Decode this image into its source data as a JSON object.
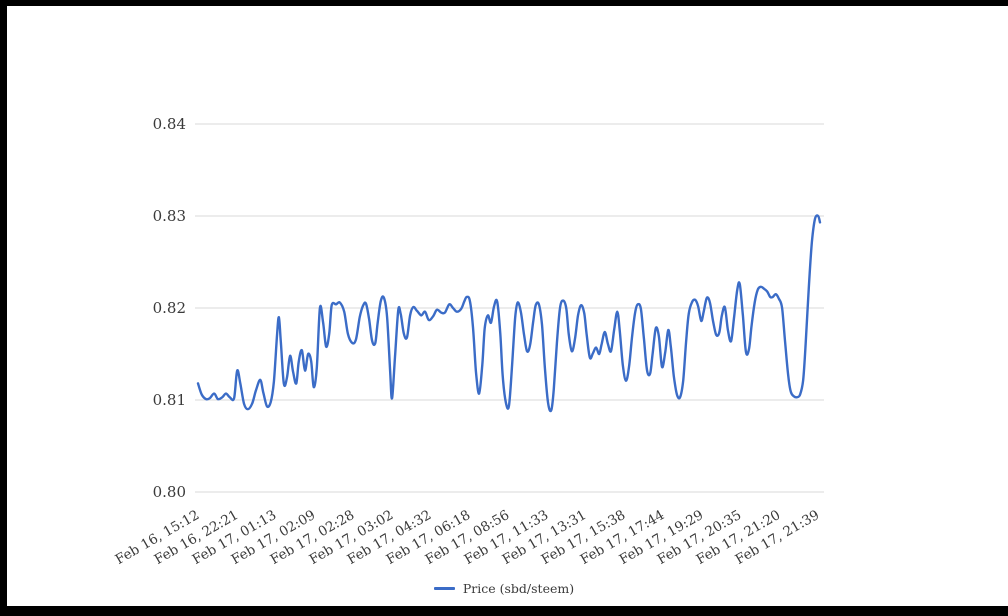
{
  "colors": {
    "frame": "#000000",
    "background": "#ffffff",
    "line": "#3b6cc7",
    "grid": "#d9d9d9",
    "text": "#3a3a3a"
  },
  "legend": {
    "label": "Price (sbd/steem)"
  },
  "chart_data": {
    "type": "line",
    "title": "",
    "xlabel": "",
    "ylabel": "",
    "grid": "horizontal",
    "legend_position": "bottom",
    "ylim": [
      0.8,
      0.84
    ],
    "y_ticks": [
      0.8,
      0.81,
      0.82,
      0.83,
      0.84
    ],
    "y_tick_labels": [
      "0.80",
      "0.81",
      "0.82",
      "0.83",
      "0.84"
    ],
    "x_tick_labels": [
      "Feb 16, 15:12",
      "Feb 16, 22:21",
      "Feb 17, 01:13",
      "Feb 17, 02:09",
      "Feb 17, 02:28",
      "Feb 17, 03:02",
      "Feb 17, 04:32",
      "Feb 17, 06:18",
      "Feb 17, 08:56",
      "Feb 17, 11:33",
      "Feb 17, 13:31",
      "Feb 17, 15:38",
      "Feb 17, 17:44",
      "Feb 17, 19:29",
      "Feb 17, 20:35",
      "Feb 17, 21:20",
      "Feb 17, 21:39"
    ],
    "series": [
      {
        "name": "Price (sbd/steem)",
        "color": "#3b6cc7",
        "points": [
          [
            0.0,
            0.8118
          ],
          [
            0.006,
            0.8106
          ],
          [
            0.013,
            0.8101
          ],
          [
            0.019,
            0.8102
          ],
          [
            0.026,
            0.8107
          ],
          [
            0.032,
            0.8101
          ],
          [
            0.039,
            0.8103
          ],
          [
            0.045,
            0.8107
          ],
          [
            0.051,
            0.8103
          ],
          [
            0.058,
            0.8102
          ],
          [
            0.063,
            0.8132
          ],
          [
            0.068,
            0.8118
          ],
          [
            0.074,
            0.8096
          ],
          [
            0.08,
            0.809
          ],
          [
            0.087,
            0.8096
          ],
          [
            0.093,
            0.811
          ],
          [
            0.1,
            0.8122
          ],
          [
            0.105,
            0.8108
          ],
          [
            0.111,
            0.8093
          ],
          [
            0.117,
            0.8098
          ],
          [
            0.122,
            0.812
          ],
          [
            0.127,
            0.817
          ],
          [
            0.13,
            0.819
          ],
          [
            0.133,
            0.8165
          ],
          [
            0.138,
            0.8118
          ],
          [
            0.143,
            0.8124
          ],
          [
            0.148,
            0.8148
          ],
          [
            0.153,
            0.813
          ],
          [
            0.158,
            0.8118
          ],
          [
            0.162,
            0.8142
          ],
          [
            0.167,
            0.8154
          ],
          [
            0.172,
            0.8132
          ],
          [
            0.177,
            0.815
          ],
          [
            0.182,
            0.8142
          ],
          [
            0.186,
            0.8114
          ],
          [
            0.191,
            0.8135
          ],
          [
            0.196,
            0.82
          ],
          [
            0.201,
            0.8185
          ],
          [
            0.206,
            0.8158
          ],
          [
            0.211,
            0.8172
          ],
          [
            0.215,
            0.8203
          ],
          [
            0.222,
            0.8204
          ],
          [
            0.228,
            0.8206
          ],
          [
            0.235,
            0.8196
          ],
          [
            0.241,
            0.8172
          ],
          [
            0.248,
            0.8162
          ],
          [
            0.254,
            0.8166
          ],
          [
            0.26,
            0.819
          ],
          [
            0.265,
            0.8202
          ],
          [
            0.27,
            0.8205
          ],
          [
            0.275,
            0.8188
          ],
          [
            0.28,
            0.8164
          ],
          [
            0.285,
            0.8162
          ],
          [
            0.289,
            0.8185
          ],
          [
            0.294,
            0.8208
          ],
          [
            0.299,
            0.8211
          ],
          [
            0.304,
            0.819
          ],
          [
            0.309,
            0.813
          ],
          [
            0.312,
            0.8102
          ],
          [
            0.317,
            0.815
          ],
          [
            0.322,
            0.8198
          ],
          [
            0.326,
            0.8193
          ],
          [
            0.331,
            0.8172
          ],
          [
            0.336,
            0.8168
          ],
          [
            0.341,
            0.8192
          ],
          [
            0.346,
            0.8201
          ],
          [
            0.352,
            0.8197
          ],
          [
            0.359,
            0.8192
          ],
          [
            0.365,
            0.8196
          ],
          [
            0.371,
            0.8187
          ],
          [
            0.378,
            0.8191
          ],
          [
            0.384,
            0.8198
          ],
          [
            0.391,
            0.8195
          ],
          [
            0.397,
            0.8195
          ],
          [
            0.404,
            0.8204
          ],
          [
            0.41,
            0.82
          ],
          [
            0.416,
            0.8196
          ],
          [
            0.423,
            0.8199
          ],
          [
            0.428,
            0.8207
          ],
          [
            0.432,
            0.8212
          ],
          [
            0.437,
            0.8208
          ],
          [
            0.442,
            0.818
          ],
          [
            0.447,
            0.813
          ],
          [
            0.452,
            0.8107
          ],
          [
            0.457,
            0.8138
          ],
          [
            0.461,
            0.8178
          ],
          [
            0.466,
            0.8192
          ],
          [
            0.471,
            0.8184
          ],
          [
            0.476,
            0.8202
          ],
          [
            0.481,
            0.8207
          ],
          [
            0.486,
            0.8172
          ],
          [
            0.49,
            0.8125
          ],
          [
            0.495,
            0.8097
          ],
          [
            0.5,
            0.8094
          ],
          [
            0.505,
            0.8138
          ],
          [
            0.51,
            0.819
          ],
          [
            0.514,
            0.8206
          ],
          [
            0.519,
            0.8196
          ],
          [
            0.524,
            0.8172
          ],
          [
            0.529,
            0.8153
          ],
          [
            0.534,
            0.816
          ],
          [
            0.539,
            0.8186
          ],
          [
            0.543,
            0.8203
          ],
          [
            0.548,
            0.8204
          ],
          [
            0.553,
            0.8182
          ],
          [
            0.558,
            0.8132
          ],
          [
            0.563,
            0.8096
          ],
          [
            0.568,
            0.8089
          ],
          [
            0.572,
            0.8112
          ],
          [
            0.577,
            0.8162
          ],
          [
            0.582,
            0.82
          ],
          [
            0.587,
            0.8208
          ],
          [
            0.592,
            0.82
          ],
          [
            0.596,
            0.8172
          ],
          [
            0.601,
            0.8153
          ],
          [
            0.606,
            0.8166
          ],
          [
            0.611,
            0.8192
          ],
          [
            0.616,
            0.8203
          ],
          [
            0.621,
            0.8194
          ],
          [
            0.625,
            0.817
          ],
          [
            0.63,
            0.8146
          ],
          [
            0.635,
            0.8151
          ],
          [
            0.64,
            0.8157
          ],
          [
            0.645,
            0.815
          ],
          [
            0.649,
            0.8161
          ],
          [
            0.654,
            0.8174
          ],
          [
            0.659,
            0.8161
          ],
          [
            0.664,
            0.8153
          ],
          [
            0.669,
            0.8176
          ],
          [
            0.674,
            0.8196
          ],
          [
            0.678,
            0.8176
          ],
          [
            0.683,
            0.8138
          ],
          [
            0.688,
            0.8121
          ],
          [
            0.693,
            0.8136
          ],
          [
            0.698,
            0.817
          ],
          [
            0.703,
            0.8196
          ],
          [
            0.707,
            0.8204
          ],
          [
            0.712,
            0.8199
          ],
          [
            0.717,
            0.8166
          ],
          [
            0.722,
            0.8132
          ],
          [
            0.727,
            0.8129
          ],
          [
            0.731,
            0.8151
          ],
          [
            0.736,
            0.8178
          ],
          [
            0.741,
            0.8169
          ],
          [
            0.746,
            0.8136
          ],
          [
            0.751,
            0.8151
          ],
          [
            0.756,
            0.8176
          ],
          [
            0.76,
            0.8159
          ],
          [
            0.765,
            0.8126
          ],
          [
            0.77,
            0.8106
          ],
          [
            0.775,
            0.8103
          ],
          [
            0.78,
            0.8121
          ],
          [
            0.785,
            0.8166
          ],
          [
            0.789,
            0.8194
          ],
          [
            0.794,
            0.8206
          ],
          [
            0.799,
            0.8209
          ],
          [
            0.804,
            0.8202
          ],
          [
            0.809,
            0.8186
          ],
          [
            0.813,
            0.8196
          ],
          [
            0.818,
            0.8211
          ],
          [
            0.823,
            0.8206
          ],
          [
            0.828,
            0.8186
          ],
          [
            0.833,
            0.8171
          ],
          [
            0.838,
            0.8173
          ],
          [
            0.842,
            0.8191
          ],
          [
            0.847,
            0.8201
          ],
          [
            0.852,
            0.8176
          ],
          [
            0.857,
            0.8164
          ],
          [
            0.862,
            0.8191
          ],
          [
            0.867,
            0.822
          ],
          [
            0.871,
            0.8226
          ],
          [
            0.876,
            0.8192
          ],
          [
            0.881,
            0.8152
          ],
          [
            0.886,
            0.8156
          ],
          [
            0.89,
            0.8181
          ],
          [
            0.895,
            0.8206
          ],
          [
            0.9,
            0.822
          ],
          [
            0.905,
            0.8223
          ],
          [
            0.91,
            0.8221
          ],
          [
            0.915,
            0.8218
          ],
          [
            0.92,
            0.8212
          ],
          [
            0.924,
            0.8212
          ],
          [
            0.929,
            0.8215
          ],
          [
            0.934,
            0.821
          ],
          [
            0.939,
            0.82
          ],
          [
            0.944,
            0.8162
          ],
          [
            0.949,
            0.8126
          ],
          [
            0.953,
            0.8109
          ],
          [
            0.958,
            0.8104
          ],
          [
            0.963,
            0.8103
          ],
          [
            0.968,
            0.8106
          ],
          [
            0.973,
            0.8122
          ],
          [
            0.977,
            0.8162
          ],
          [
            0.982,
            0.8222
          ],
          [
            0.987,
            0.8272
          ],
          [
            0.992,
            0.8297
          ],
          [
            0.997,
            0.83
          ],
          [
            1.0,
            0.8293
          ]
        ]
      }
    ]
  }
}
